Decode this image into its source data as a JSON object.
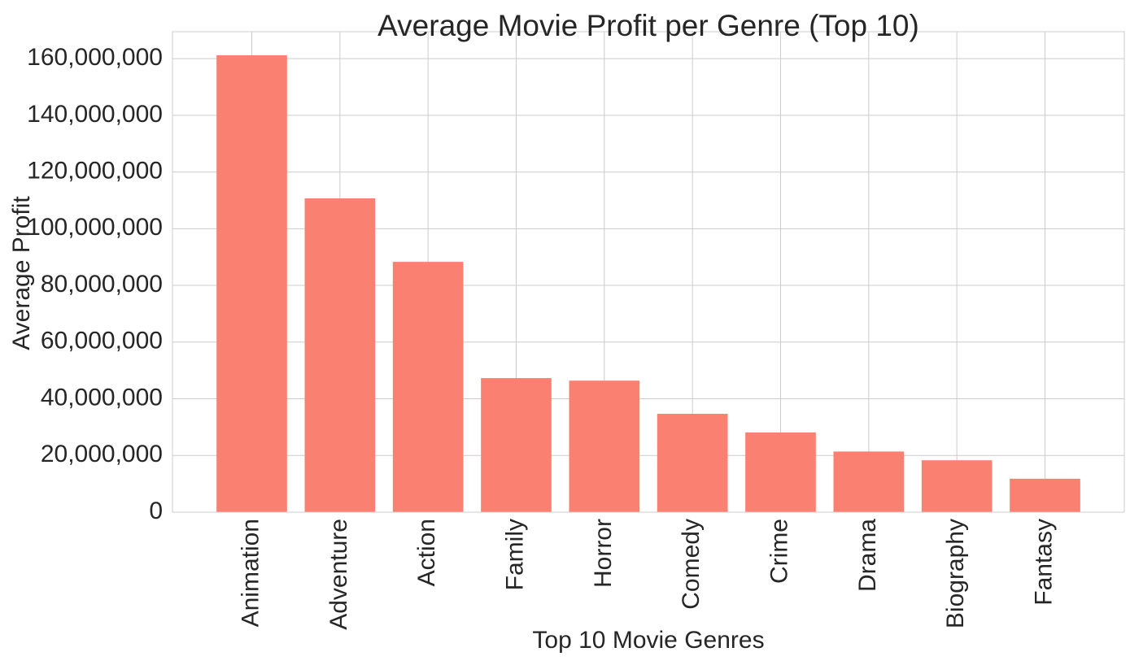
{
  "chart_data": {
    "type": "bar",
    "title": "Average Movie Profit per Genre (Top 10)",
    "xlabel": "Top 10 Movie Genres",
    "ylabel": "Average Profit",
    "categories": [
      "Animation",
      "Adventure",
      "Action",
      "Family",
      "Horror",
      "Comedy",
      "Crime",
      "Drama",
      "Biography",
      "Fantasy"
    ],
    "values": [
      161200000,
      110700000,
      88300000,
      47300000,
      46400000,
      34700000,
      28100000,
      21400000,
      18300000,
      11800000
    ],
    "ylim": [
      0,
      169500000
    ],
    "yticks": [
      0,
      20000000,
      40000000,
      60000000,
      80000000,
      100000000,
      120000000,
      140000000,
      160000000
    ],
    "ytick_labels": [
      "0",
      "20,000,000",
      "40,000,000",
      "60,000,000",
      "80,000,000",
      "100,000,000",
      "120,000,000",
      "140,000,000",
      "160,000,000"
    ],
    "grid": true,
    "bar_color": "#fa8072",
    "grid_color": "#cccccc",
    "text_color": "#262626"
  }
}
